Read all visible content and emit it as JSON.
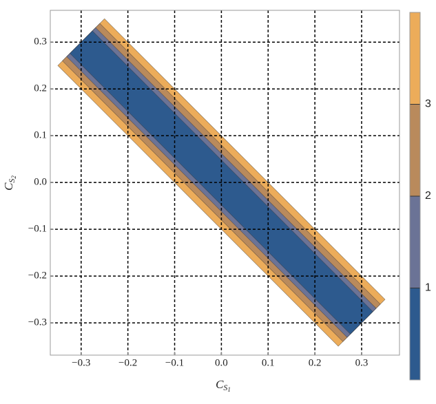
{
  "chart_data": {
    "type": "contour",
    "xlabel": [
      "C",
      "S",
      "1"
    ],
    "ylabel": [
      "C",
      "S",
      "2"
    ],
    "xlim": [
      -0.366,
      0.381
    ],
    "ylim": [
      -0.369,
      0.368
    ],
    "xticks": [
      {
        "value": -0.3,
        "label": "−0.3"
      },
      {
        "value": -0.2,
        "label": "−0.2"
      },
      {
        "value": -0.1,
        "label": "−0.1"
      },
      {
        "value": 0,
        "label": "0.0"
      },
      0.1,
      0.2,
      0.3
    ],
    "yticks": [
      {
        "value": -0.3,
        "label": "−0.3"
      },
      {
        "value": -0.2,
        "label": "−0.2"
      },
      {
        "value": -0.1,
        "label": "−0.1"
      },
      {
        "value": 0,
        "label": "0.0"
      },
      0.1,
      0.2,
      0.3
    ],
    "grid": true,
    "strip_halfwidths": [
      0.048,
      0.062,
      0.08,
      0.1
    ],
    "strip_halflength": 0.6,
    "colors": [
      "#2d5a8e",
      "#6b7396",
      "#b98a5c",
      "#ecac5a"
    ],
    "clim": [
      0,
      4
    ],
    "colorbar_ticks": [
      1,
      2,
      3
    ]
  }
}
